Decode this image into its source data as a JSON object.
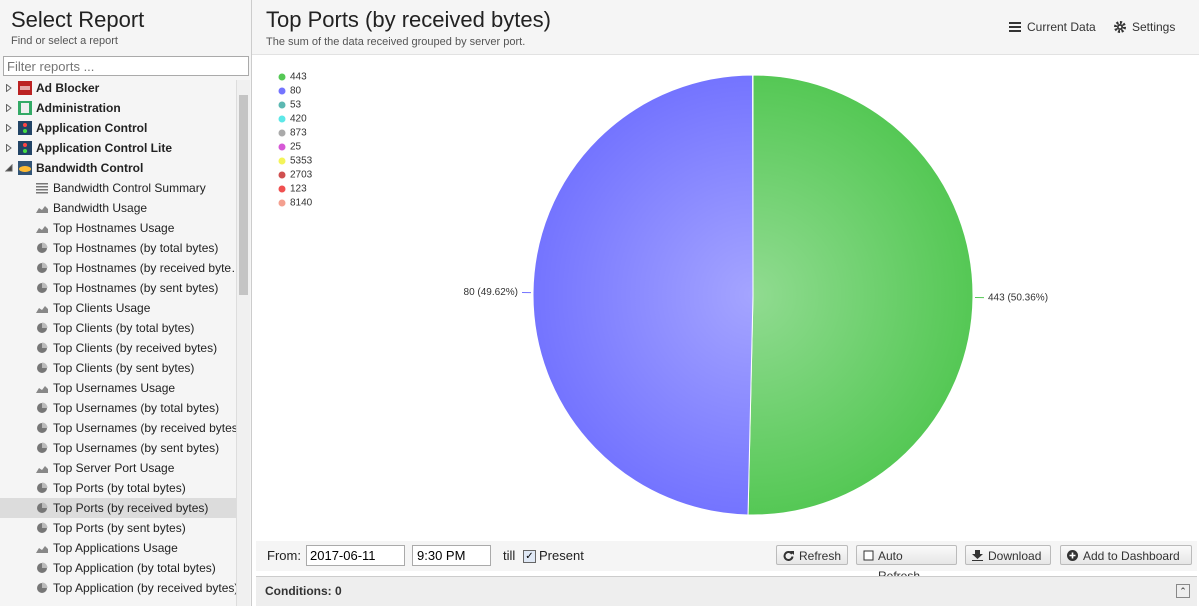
{
  "sidebar": {
    "title": "Select Report",
    "subtitle": "Find or select a report",
    "filter_placeholder": "Filter reports ...",
    "items": [
      {
        "label": "Ad Blocker",
        "group": true,
        "expanded": false,
        "icon": "ads"
      },
      {
        "label": "Administration",
        "group": true,
        "expanded": false,
        "icon": "admin"
      },
      {
        "label": "Application Control",
        "group": true,
        "expanded": false,
        "icon": "app"
      },
      {
        "label": "Application Control Lite",
        "group": true,
        "expanded": false,
        "icon": "app"
      },
      {
        "label": "Bandwidth Control",
        "group": true,
        "expanded": true,
        "icon": "bw"
      },
      {
        "label": "Bandwidth Control Summary",
        "icon": "list"
      },
      {
        "label": "Bandwidth Usage",
        "icon": "area"
      },
      {
        "label": "Top Hostnames Usage",
        "icon": "area"
      },
      {
        "label": "Top Hostnames (by total bytes)",
        "icon": "pie"
      },
      {
        "label": "Top Hostnames (by received byte…",
        "icon": "pie"
      },
      {
        "label": "Top Hostnames (by sent bytes)",
        "icon": "pie"
      },
      {
        "label": "Top Clients Usage",
        "icon": "area"
      },
      {
        "label": "Top Clients (by total bytes)",
        "icon": "pie"
      },
      {
        "label": "Top Clients (by received bytes)",
        "icon": "pie"
      },
      {
        "label": "Top Clients (by sent bytes)",
        "icon": "pie"
      },
      {
        "label": "Top Usernames Usage",
        "icon": "area"
      },
      {
        "label": "Top Usernames (by total bytes)",
        "icon": "pie"
      },
      {
        "label": "Top Usernames (by received bytes)",
        "icon": "pie"
      },
      {
        "label": "Top Usernames (by sent bytes)",
        "icon": "pie"
      },
      {
        "label": "Top Server Port Usage",
        "icon": "area"
      },
      {
        "label": "Top Ports (by total bytes)",
        "icon": "pie"
      },
      {
        "label": "Top Ports (by received bytes)",
        "icon": "pie",
        "selected": true
      },
      {
        "label": "Top Ports (by sent bytes)",
        "icon": "pie"
      },
      {
        "label": "Top Applications Usage",
        "icon": "area"
      },
      {
        "label": "Top Application (by total bytes)",
        "icon": "pie"
      },
      {
        "label": "Top Application (by received bytes)",
        "icon": "pie"
      }
    ]
  },
  "header": {
    "current_data": "Current Data",
    "settings": "Settings"
  },
  "chart_data": {
    "type": "pie",
    "title": "Top Ports (by received bytes)",
    "subtitle": "The sum of the data received grouped by server port.",
    "categories": [
      "443",
      "80",
      "53",
      "420",
      "873",
      "25",
      "5353",
      "2703",
      "123",
      "8140"
    ],
    "values": [
      50.36,
      49.62,
      0.01,
      0.01,
      0,
      0,
      0,
      0,
      0,
      0
    ],
    "value_labels": [
      "443 (50.36%)",
      "80 (49.62%)",
      null,
      null,
      null,
      null,
      null,
      null,
      null,
      null
    ],
    "colors": [
      "#55c855",
      "#7474ff",
      "#5cb8b2",
      "#5de8e8",
      "#aaaaaa",
      "#d659d6",
      "#f4f45a",
      "#d05050",
      "#f05050",
      "#f4a090"
    ],
    "legend": "top-left"
  },
  "toolbar": {
    "from": "From:",
    "date": "2017-06-11",
    "time": "9:30 PM",
    "till": "till",
    "present": "Present",
    "refresh": "Refresh",
    "auto_refresh": "Auto Refresh",
    "download": "Download",
    "add_to_dashboard": "Add to Dashboard"
  },
  "conditions": "Conditions: 0"
}
